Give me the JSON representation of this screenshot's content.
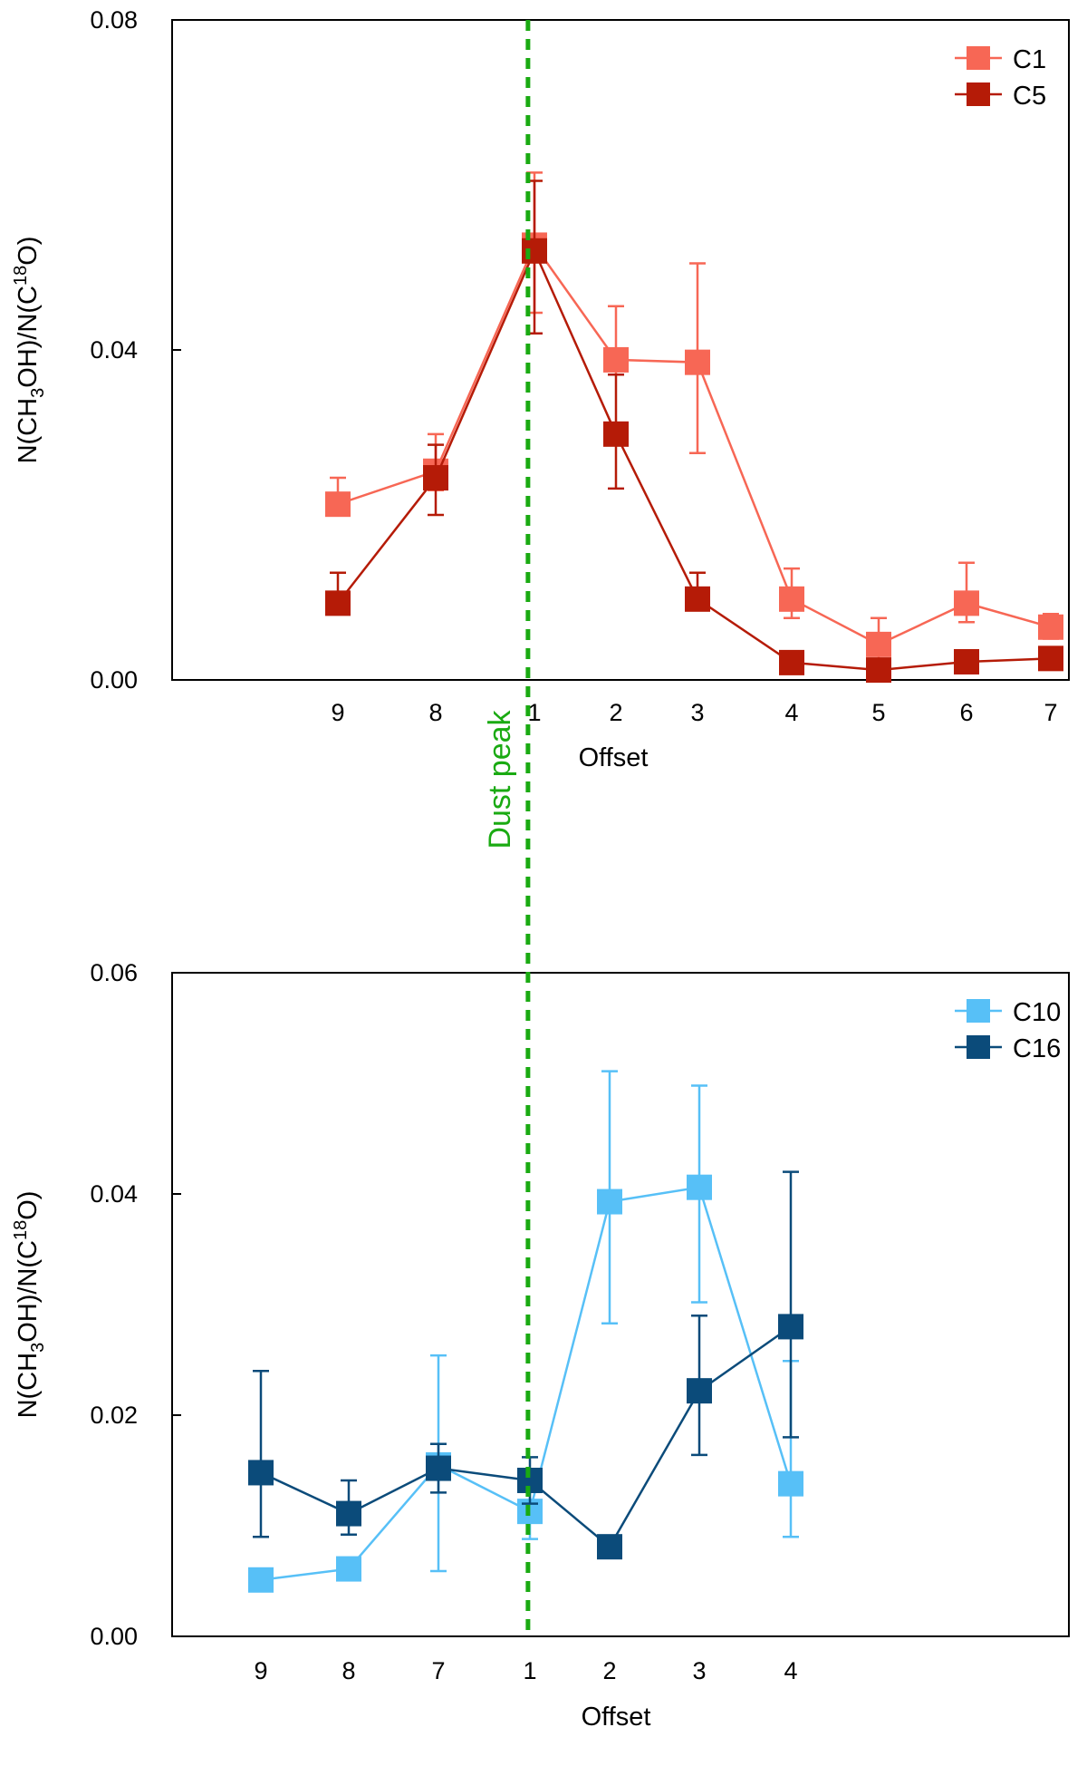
{
  "chart_data": [
    {
      "type": "line",
      "panel": "top",
      "xlabel": "Offset",
      "ylabel_parts": {
        "pre": "N(CH",
        "sub": "3",
        "mid": "OH)/N(C",
        "sup": "18",
        "post": "O)"
      },
      "ylim": [
        0,
        0.08
      ],
      "yticks": [
        0.0,
        0.04,
        0.08
      ],
      "ytick_labels": [
        "0.00",
        "0.04",
        "0.08"
      ],
      "categories": [
        "9",
        "8",
        "1",
        "2",
        "3",
        "4",
        "5",
        "6",
        "7"
      ],
      "category_gaps": [
        1,
        1,
        1,
        0.85,
        0.85,
        1.07,
        0.92,
        0.92,
        0.85
      ],
      "dust_peak_index": 1.98,
      "legend_position": "top-right",
      "series": [
        {
          "name": "C1",
          "color": "#f76755",
          "values": [
            0.0213,
            0.0253,
            0.0527,
            0.0388,
            0.0385,
            0.0098,
            0.0043,
            0.0093,
            0.0064
          ],
          "err_lo": [
            0.0215,
            0.023,
            0.0445,
            0.037,
            0.0275,
            0.0075,
            0.002,
            0.007,
            0.005
          ],
          "err_hi": [
            0.0245,
            0.0298,
            0.0615,
            0.0453,
            0.0505,
            0.0135,
            0.0075,
            0.0142,
            0.008
          ]
        },
        {
          "name": "C5",
          "color": "#b51b07",
          "values": [
            0.0093,
            0.0245,
            0.052,
            0.0298,
            0.0098,
            0.0021,
            0.0012,
            0.0022,
            0.0026
          ],
          "err_lo": [
            0.008,
            0.02,
            0.042,
            0.0232,
            0.0085,
            0.0018,
            0.0008,
            0.0018,
            0.002
          ],
          "err_hi": [
            0.013,
            0.0285,
            0.0605,
            0.037,
            0.013,
            0.0028,
            0.0015,
            0.0028,
            0.0032
          ]
        }
      ]
    },
    {
      "type": "line",
      "panel": "bottom",
      "xlabel": "Offset",
      "ylabel_parts": {
        "pre": "N(CH",
        "sub": "3",
        "mid": "OH)/N(C",
        "sup": "18",
        "post": "O)"
      },
      "ylim": [
        0,
        0.06
      ],
      "yticks": [
        0.0,
        0.02,
        0.04,
        0.06
      ],
      "ytick_labels": [
        "0.00",
        "0.02",
        "0.04",
        "0.06"
      ],
      "categories": [
        "9",
        "8",
        "7",
        "1",
        "2",
        "3",
        "4"
      ],
      "category_gaps": [
        1,
        1,
        1,
        0.85,
        1,
        1,
        1
      ],
      "dust_peak_index": 2.93,
      "legend_position": "top-right",
      "series": [
        {
          "name": "C10",
          "color": "#57c0f7",
          "values": [
            0.0051,
            0.0061,
            0.0155,
            0.0113,
            0.0393,
            0.0406,
            0.0138
          ],
          "err_lo": [
            0.0049,
            0.0058,
            0.0059,
            0.0088,
            0.0283,
            0.0302,
            0.009
          ],
          "err_hi": [
            0.0053,
            0.0066,
            0.0254,
            0.0138,
            0.0511,
            0.0498,
            0.0249
          ]
        },
        {
          "name": "C16",
          "color": "#0b4b7a",
          "values": [
            0.0148,
            0.0111,
            0.0152,
            0.0141,
            0.0081,
            0.0222,
            0.028
          ],
          "err_lo": [
            0.009,
            0.0092,
            0.013,
            0.012,
            0.0079,
            0.0164,
            0.018
          ],
          "err_hi": [
            0.024,
            0.0141,
            0.0174,
            0.0162,
            0.0084,
            0.029,
            0.042
          ]
        }
      ]
    }
  ],
  "annotation": {
    "label": "Dust peak",
    "color": "#1aaa12"
  }
}
